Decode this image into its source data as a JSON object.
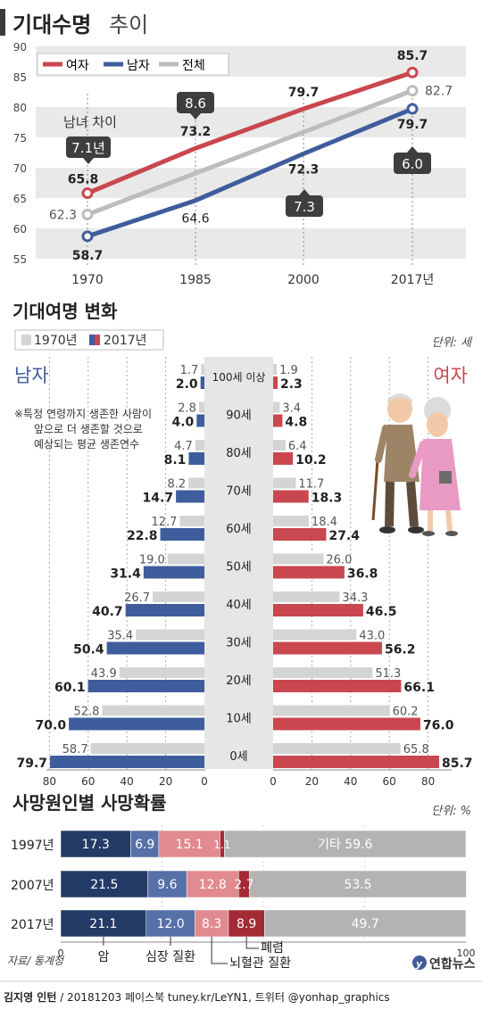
{
  "title": {
    "bold": "기대수명",
    "light": "추이"
  },
  "colors": {
    "female": "#c9474f",
    "male": "#3f5d9c",
    "total": "#bdbdbd",
    "female_light": "#e9a0a4",
    "male_light": "#9fb0d6",
    "gray_bar": "#d4d4d4",
    "band": "#e9e9e9",
    "navy": "#243a67",
    "dark_red": "#a42a36",
    "pink": "#e18a8f",
    "mid_blue": "#5670a8",
    "gray_other": "#b3b3b3"
  },
  "chart_data": [
    {
      "type": "line",
      "x": [
        "1970",
        "1985",
        "2000",
        "2017년"
      ],
      "series": [
        {
          "name": "여자",
          "values": [
            65.8,
            73.2,
            79.7,
            85.7
          ]
        },
        {
          "name": "남자",
          "values": [
            58.7,
            64.6,
            72.3,
            79.7
          ]
        },
        {
          "name": "전체",
          "values": [
            62.3,
            null,
            null,
            82.7
          ]
        }
      ],
      "value_labels": {
        "female": [
          "65.8",
          "73.2",
          "79.7",
          "85.7"
        ],
        "male": [
          "58.7",
          "64.6",
          "72.3",
          "79.7"
        ],
        "total": [
          "62.3",
          "82.7"
        ]
      },
      "yticks": [
        "90",
        "85",
        "80",
        "75",
        "70",
        "65",
        "60",
        "55"
      ],
      "ylim": [
        55,
        90
      ],
      "gap_caption": "남녀 차이",
      "gap_labels": [
        "7.1년",
        "8.6",
        "7.3",
        "6.0"
      ],
      "legend": [
        "여자",
        "남자",
        "전체"
      ]
    },
    {
      "type": "bar",
      "title": "기대여명 변화",
      "unit": "단위: 세",
      "legend": [
        "1970년",
        "2017년"
      ],
      "male_label": "남자",
      "female_label": "여자",
      "note_lines": [
        "※특정 연령까지 생존한 사람이",
        "앞으로 더 생존할 것으로",
        "예상되는 평균 생존연수"
      ],
      "categories": [
        "100세 이상",
        "90세",
        "80세",
        "70세",
        "60세",
        "50세",
        "40세",
        "30세",
        "20세",
        "10세",
        "0세"
      ],
      "male_1970": [
        1.7,
        2.8,
        4.7,
        8.2,
        12.7,
        19.0,
        26.7,
        35.4,
        43.9,
        52.8,
        58.7
      ],
      "male_2017": [
        2.0,
        4.0,
        8.1,
        14.7,
        22.8,
        31.4,
        40.7,
        50.4,
        60.1,
        70.0,
        79.7
      ],
      "female_1970": [
        1.9,
        3.4,
        6.4,
        11.7,
        18.4,
        26.0,
        34.3,
        43.0,
        51.3,
        60.2,
        65.8
      ],
      "female_2017": [
        2.3,
        4.8,
        10.2,
        18.3,
        27.4,
        36.8,
        46.5,
        56.2,
        66.1,
        76.0,
        85.7
      ],
      "labels": {
        "male_1970": [
          "1.7",
          "2.8",
          "4.7",
          "8.2",
          "12.7",
          "19.0",
          "26.7",
          "35.4",
          "43.9",
          "52.8",
          "58.7"
        ],
        "male_2017": [
          "2.0",
          "4.0",
          "8.1",
          "14.7",
          "22.8",
          "31.4",
          "40.7",
          "50.4",
          "60.1",
          "70.0",
          "79.7"
        ],
        "female_1970": [
          "1.9",
          "3.4",
          "6.4",
          "11.7",
          "18.4",
          "26.0",
          "34.3",
          "43.0",
          "51.3",
          "60.2",
          "65.8"
        ],
        "female_2017": [
          "2.3",
          "4.8",
          "10.2",
          "18.3",
          "27.4",
          "36.8",
          "46.5",
          "56.2",
          "66.1",
          "76.0",
          "85.7"
        ]
      },
      "axis_ticks_left": [
        "80",
        "60",
        "40",
        "20",
        "0"
      ],
      "axis_ticks_right": [
        "0",
        "20",
        "40",
        "60",
        "80"
      ]
    },
    {
      "type": "bar",
      "stacked": true,
      "title": "사망원인별 사망확률",
      "unit": "단위: %",
      "categories": [
        "1997년",
        "2007년",
        "2017년"
      ],
      "series": [
        {
          "name": "암",
          "values": [
            17.3,
            21.5,
            21.1
          ]
        },
        {
          "name": "심장 질환",
          "values": [
            6.9,
            9.6,
            12.0
          ]
        },
        {
          "name": "뇌혈관 질환",
          "values": [
            15.1,
            12.8,
            8.3
          ]
        },
        {
          "name": "폐렴",
          "values": [
            1.1,
            2.7,
            8.9
          ]
        },
        {
          "name": "기타",
          "values": [
            59.6,
            53.5,
            49.7
          ]
        }
      ],
      "labels": [
        [
          "17.3",
          "6.9",
          "15.1",
          "1.1",
          "기타 59.6"
        ],
        [
          "21.5",
          "9.6",
          "12.8",
          "2.7",
          "53.5"
        ],
        [
          "21.1",
          "12.0",
          "8.3",
          "8.9",
          "49.7"
        ]
      ],
      "xticks": [
        "0",
        "100"
      ],
      "xlim": [
        0,
        100
      ],
      "callouts": [
        "암",
        "심장 질환",
        "폐렴",
        "뇌혈관 질환"
      ]
    }
  ],
  "footer": {
    "source": "자료/ 통계청",
    "credit_bold": "김지영 인턴",
    "credit_rest": " / 20181203 페이스북 tuney.kr/LeYN1, 트위터 @yonhap_graphics",
    "logo_text": "연합뉴스"
  }
}
